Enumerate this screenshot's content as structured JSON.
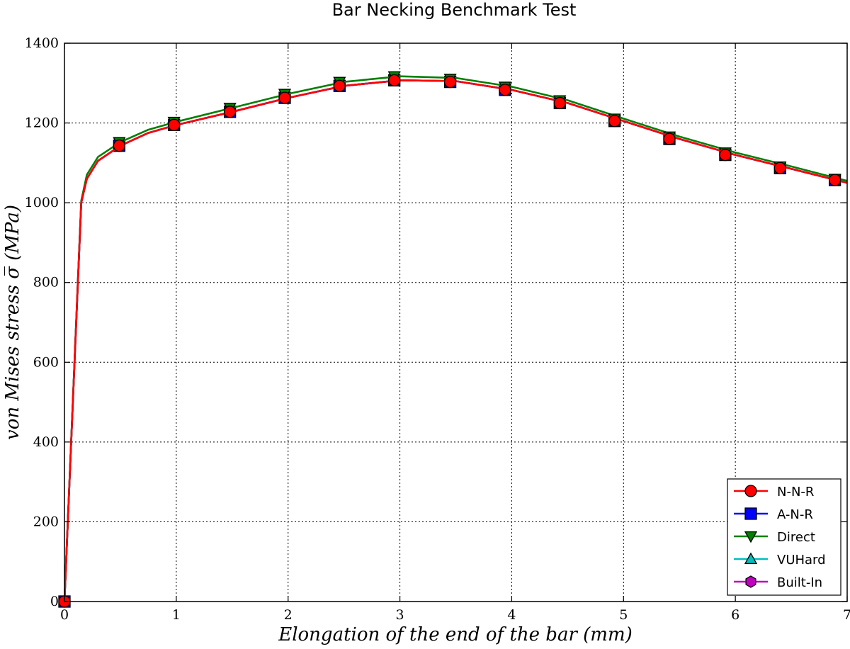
{
  "chart_data": {
    "type": "line",
    "title": "Bar Necking Benchmark Test",
    "xlabel": "Elongation of the end of the bar (mm)",
    "ylabel": "von Mises stress σ̅ (MPa)",
    "xlim": [
      0,
      7
    ],
    "ylim": [
      0,
      1400
    ],
    "x_ticks": [
      "0",
      "1",
      "2",
      "3",
      "4",
      "5",
      "6",
      "7"
    ],
    "y_ticks": [
      "0",
      "200",
      "400",
      "600",
      "800",
      "1000",
      "1200",
      "1400"
    ],
    "grid": true,
    "legend_position": "bottom-right",
    "series": [
      {
        "name": "N-N-R",
        "color": "#ff0000",
        "marker": "circle",
        "x": [
          0,
          0.15,
          0.2,
          0.3,
          0.5,
          0.75,
          1.0,
          1.5,
          2.0,
          2.5,
          3.0,
          3.5,
          4.0,
          4.5,
          5.0,
          5.5,
          6.0,
          6.5,
          7.0
        ],
        "y": [
          0,
          1000,
          1060,
          1105,
          1143,
          1175,
          1195,
          1228,
          1263,
          1293,
          1307,
          1305,
          1283,
          1250,
          1205,
          1160,
          1120,
          1085,
          1050
        ],
        "mx": [
          0,
          0.49,
          0.98,
          1.48,
          1.97,
          2.46,
          2.95,
          3.45,
          3.94,
          4.43,
          4.92,
          5.41,
          5.91,
          6.4,
          6.89
        ],
        "my": [
          0,
          1143,
          1195,
          1228,
          1263,
          1293,
          1307,
          1303,
          1283,
          1250,
          1205,
          1160,
          1120,
          1087,
          1057
        ]
      },
      {
        "name": "A-N-R",
        "color": "#0000ff",
        "marker": "square",
        "x": [
          0,
          0.15,
          0.2,
          0.3,
          0.5,
          0.75,
          1.0,
          1.5,
          2.0,
          2.5,
          3.0,
          3.5,
          4.0,
          4.5,
          5.0,
          5.5,
          6.0,
          6.5,
          7.0
        ],
        "y": [
          0,
          1000,
          1060,
          1105,
          1143,
          1175,
          1195,
          1228,
          1263,
          1293,
          1307,
          1305,
          1283,
          1250,
          1205,
          1160,
          1120,
          1085,
          1050
        ],
        "mx": [
          0,
          0.49,
          0.98,
          1.48,
          1.97,
          2.46,
          2.95,
          3.45,
          3.94,
          4.43,
          4.92,
          5.41,
          5.91,
          6.4,
          6.89
        ],
        "my": [
          0,
          1143,
          1195,
          1228,
          1263,
          1293,
          1307,
          1303,
          1283,
          1250,
          1205,
          1160,
          1120,
          1087,
          1057
        ]
      },
      {
        "name": "Direct",
        "color": "#008000",
        "marker": "triangle-down",
        "x": [
          0,
          0.15,
          0.2,
          0.3,
          0.5,
          0.75,
          1.0,
          1.5,
          2.0,
          2.5,
          3.0,
          3.5,
          4.0,
          4.5,
          5.0,
          5.5,
          6.0,
          6.5,
          7.0
        ],
        "y": [
          0,
          1005,
          1070,
          1115,
          1152,
          1183,
          1203,
          1238,
          1273,
          1303,
          1317,
          1313,
          1291,
          1257,
          1211,
          1166,
          1126,
          1091,
          1055
        ],
        "mx": [
          0.49,
          0.98,
          1.48,
          1.97,
          2.46,
          2.95,
          3.45,
          3.94,
          4.43,
          4.92,
          5.41,
          5.91,
          6.4,
          6.89
        ],
        "my": [
          1152,
          1203,
          1238,
          1273,
          1303,
          1317,
          1311,
          1291,
          1257,
          1211,
          1166,
          1126,
          1091,
          1060
        ]
      },
      {
        "name": "VUHard",
        "color": "#00bfbf",
        "marker": "triangle-up",
        "x": [
          0,
          0.15,
          0.2,
          0.3,
          0.5,
          0.75,
          1.0,
          1.5,
          2.0,
          2.5,
          3.0,
          3.5,
          4.0,
          4.5,
          5.0,
          5.5,
          6.0,
          6.5,
          7.0
        ],
        "y": [
          0,
          1000,
          1060,
          1105,
          1143,
          1175,
          1195,
          1228,
          1263,
          1293,
          1307,
          1305,
          1283,
          1250,
          1205,
          1160,
          1120,
          1085,
          1050
        ],
        "mx": [],
        "my": []
      },
      {
        "name": "Built-In",
        "color": "#bf00bf",
        "marker": "hexagon",
        "x": [
          0,
          0.15,
          0.2,
          0.3,
          0.5,
          0.75,
          1.0,
          1.5,
          2.0,
          2.5,
          3.0,
          3.5,
          4.0,
          4.5,
          5.0,
          5.5,
          6.0,
          6.5,
          7.0
        ],
        "y": [
          0,
          1000,
          1060,
          1105,
          1143,
          1175,
          1195,
          1228,
          1263,
          1293,
          1307,
          1305,
          1283,
          1250,
          1205,
          1160,
          1120,
          1085,
          1050
        ],
        "mx": [],
        "my": []
      }
    ],
    "draw_order": [
      4,
      3,
      1,
      2,
      0
    ]
  }
}
